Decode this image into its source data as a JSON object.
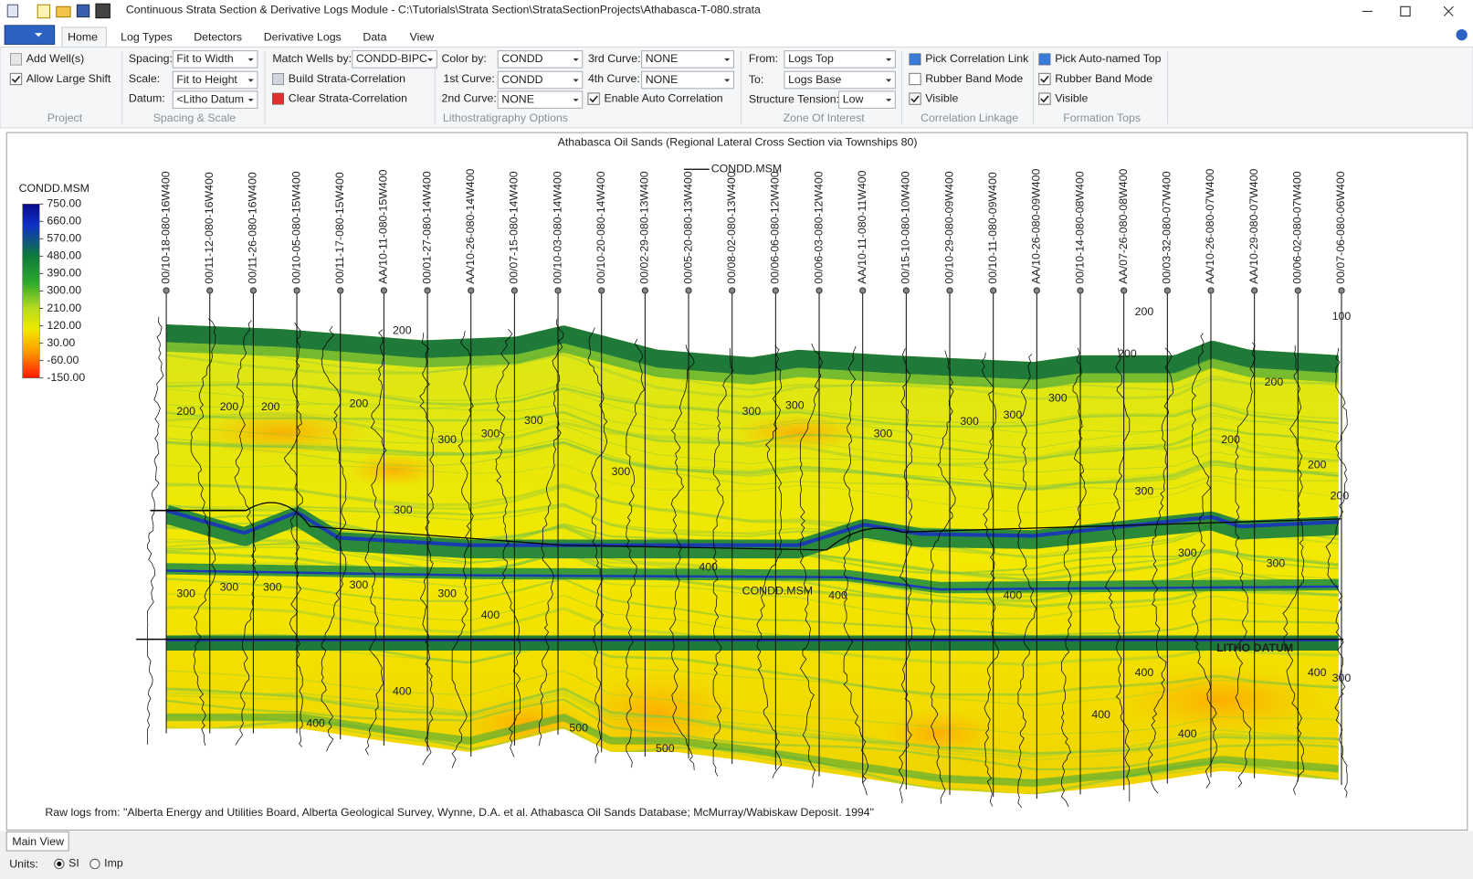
{
  "window": {
    "title": "Continuous Strata Section & Derivative Logs Module - C:\\Tutorials\\Strata Section\\StrataSectionProjects\\Athabasca-T-080.strata"
  },
  "ribbon": {
    "tabs": [
      "Home",
      "Log Types",
      "Detectors",
      "Derivative Logs",
      "Data",
      "View"
    ],
    "project": {
      "group": "Project",
      "add_wells": "Add Well(s)",
      "allow_large_shift": {
        "label": "Allow Large Shift",
        "checked": true
      }
    },
    "spacing_scale": {
      "group": "Spacing & Scale",
      "spacing_label": "Spacing:",
      "spacing": "Fit to Width",
      "scale_label": "Scale:",
      "scale": "Fit to Height",
      "datum_label": "Datum:",
      "datum": "<Litho Datum"
    },
    "match": {
      "label": "Match Wells by:",
      "value": "CONDD-BIPC",
      "build": "Build Strata-Correlation",
      "clear": "Clear Strata-Correlation"
    },
    "litho": {
      "group": "Lithostratigraphy Options",
      "color_by_label": "Color by:",
      "color_by": "CONDD",
      "curve1_label": "1st Curve:",
      "curve1": "CONDD",
      "curve2_label": "2nd Curve:",
      "curve2": "NONE",
      "curve3_label": "3rd Curve:",
      "curve3": "NONE",
      "curve4_label": "4th Curve:",
      "curve4": "NONE",
      "auto_correlation": {
        "label": "Enable Auto Correlation",
        "checked": true
      }
    },
    "zone": {
      "group": "Zone Of Interest",
      "from_label": "From:",
      "from": "Logs Top",
      "to_label": "To:",
      "to": "Logs Base",
      "tension_label": "Structure Tension:",
      "tension": "Low"
    },
    "correlation": {
      "group": "Correlation Linkage",
      "pick": "Pick Correlation Link",
      "rubber_band": {
        "label": "Rubber Band Mode",
        "checked": false
      },
      "visible": {
        "label": "Visible",
        "checked": true
      }
    },
    "formation": {
      "group": "Formation Tops",
      "pick": "Pick Auto-named Top",
      "rubber_band": {
        "label": "Rubber Band Mode",
        "checked": true
      },
      "visible": {
        "label": "Visible",
        "checked": true
      }
    }
  },
  "section": {
    "title": "Athabasca Oil Sands (Regional Lateral Cross Section via Townships 80)",
    "legend": "CONDD.MSM",
    "colorbar": {
      "title": "CONDD.MSM",
      "ticks": [
        {
          "value": 750,
          "label": "750.00"
        },
        {
          "value": 660,
          "label": "660.00"
        },
        {
          "value": 570,
          "label": "570.00"
        },
        {
          "value": 480,
          "label": "480.00"
        },
        {
          "value": 390,
          "label": "390.00"
        },
        {
          "value": 300,
          "label": "300.00"
        },
        {
          "value": 210,
          "label": "210.00"
        },
        {
          "value": 120,
          "label": "120.00"
        },
        {
          "value": 30,
          "label": "30.00"
        },
        {
          "value": -60,
          "label": "-60.00"
        },
        {
          "value": -150,
          "label": "-150.00"
        }
      ]
    },
    "wells": [
      "00/10-18-080-16W400",
      "00/11-12-080-16W400",
      "00/11-26-080-16W400",
      "00/10-05-080-15W400",
      "00/11-17-080-15W400",
      "AA/10-11-080-15W400",
      "00/01-27-080-14W400",
      "AA/10-26-080-14W400",
      "00/07-15-080-14W400",
      "00/10-03-080-14W400",
      "00/10-20-080-14W400",
      "00/02-29-080-13W400",
      "00/05-20-080-13W400",
      "00/08-02-080-13W400",
      "00/06-06-080-12W400",
      "00/06-03-080-12W400",
      "AA/10-11-080-11W400",
      "00/15-10-080-10W400",
      "00/10-29-080-09W400",
      "00/10-11-080-09W400",
      "AA/10-26-080-09W400",
      "00/10-14-080-08W400",
      "AA/07-26-080-08W400",
      "00/03-32-080-07W400",
      "AA/10-26-080-07W400",
      "AA/10-29-080-07W400",
      "00/06-02-080-07W400",
      "00/07-06-080-06W400"
    ],
    "annotations": [
      "200",
      "200",
      "200",
      "200",
      "200",
      "300",
      "300",
      "300",
      "300",
      "300",
      "300",
      "300",
      "300",
      "300",
      "300",
      "300",
      "200",
      "200",
      "200",
      "200",
      "200",
      "300",
      "200",
      "100",
      "300",
      "300",
      "300",
      "300",
      "300",
      "400",
      "400",
      "CONDD.MSM",
      "400",
      "400",
      "300",
      "300",
      "400",
      "400",
      "500",
      "500",
      "400",
      "400",
      "400",
      "400",
      "300"
    ],
    "datum_label": "LITHO DATUM",
    "footnote": "Raw logs from: \"Alberta Energy and Utilities Board, Alberta Geological Survey, Wynne, D.A. et al. Athabasca Oil Sands Database; McMurray/Wabiskaw Deposit. 1994\""
  },
  "bottom": {
    "tab": "Main View",
    "units_label": "Units:",
    "units": [
      "SI",
      "Imp"
    ],
    "selected_unit": "SI"
  }
}
